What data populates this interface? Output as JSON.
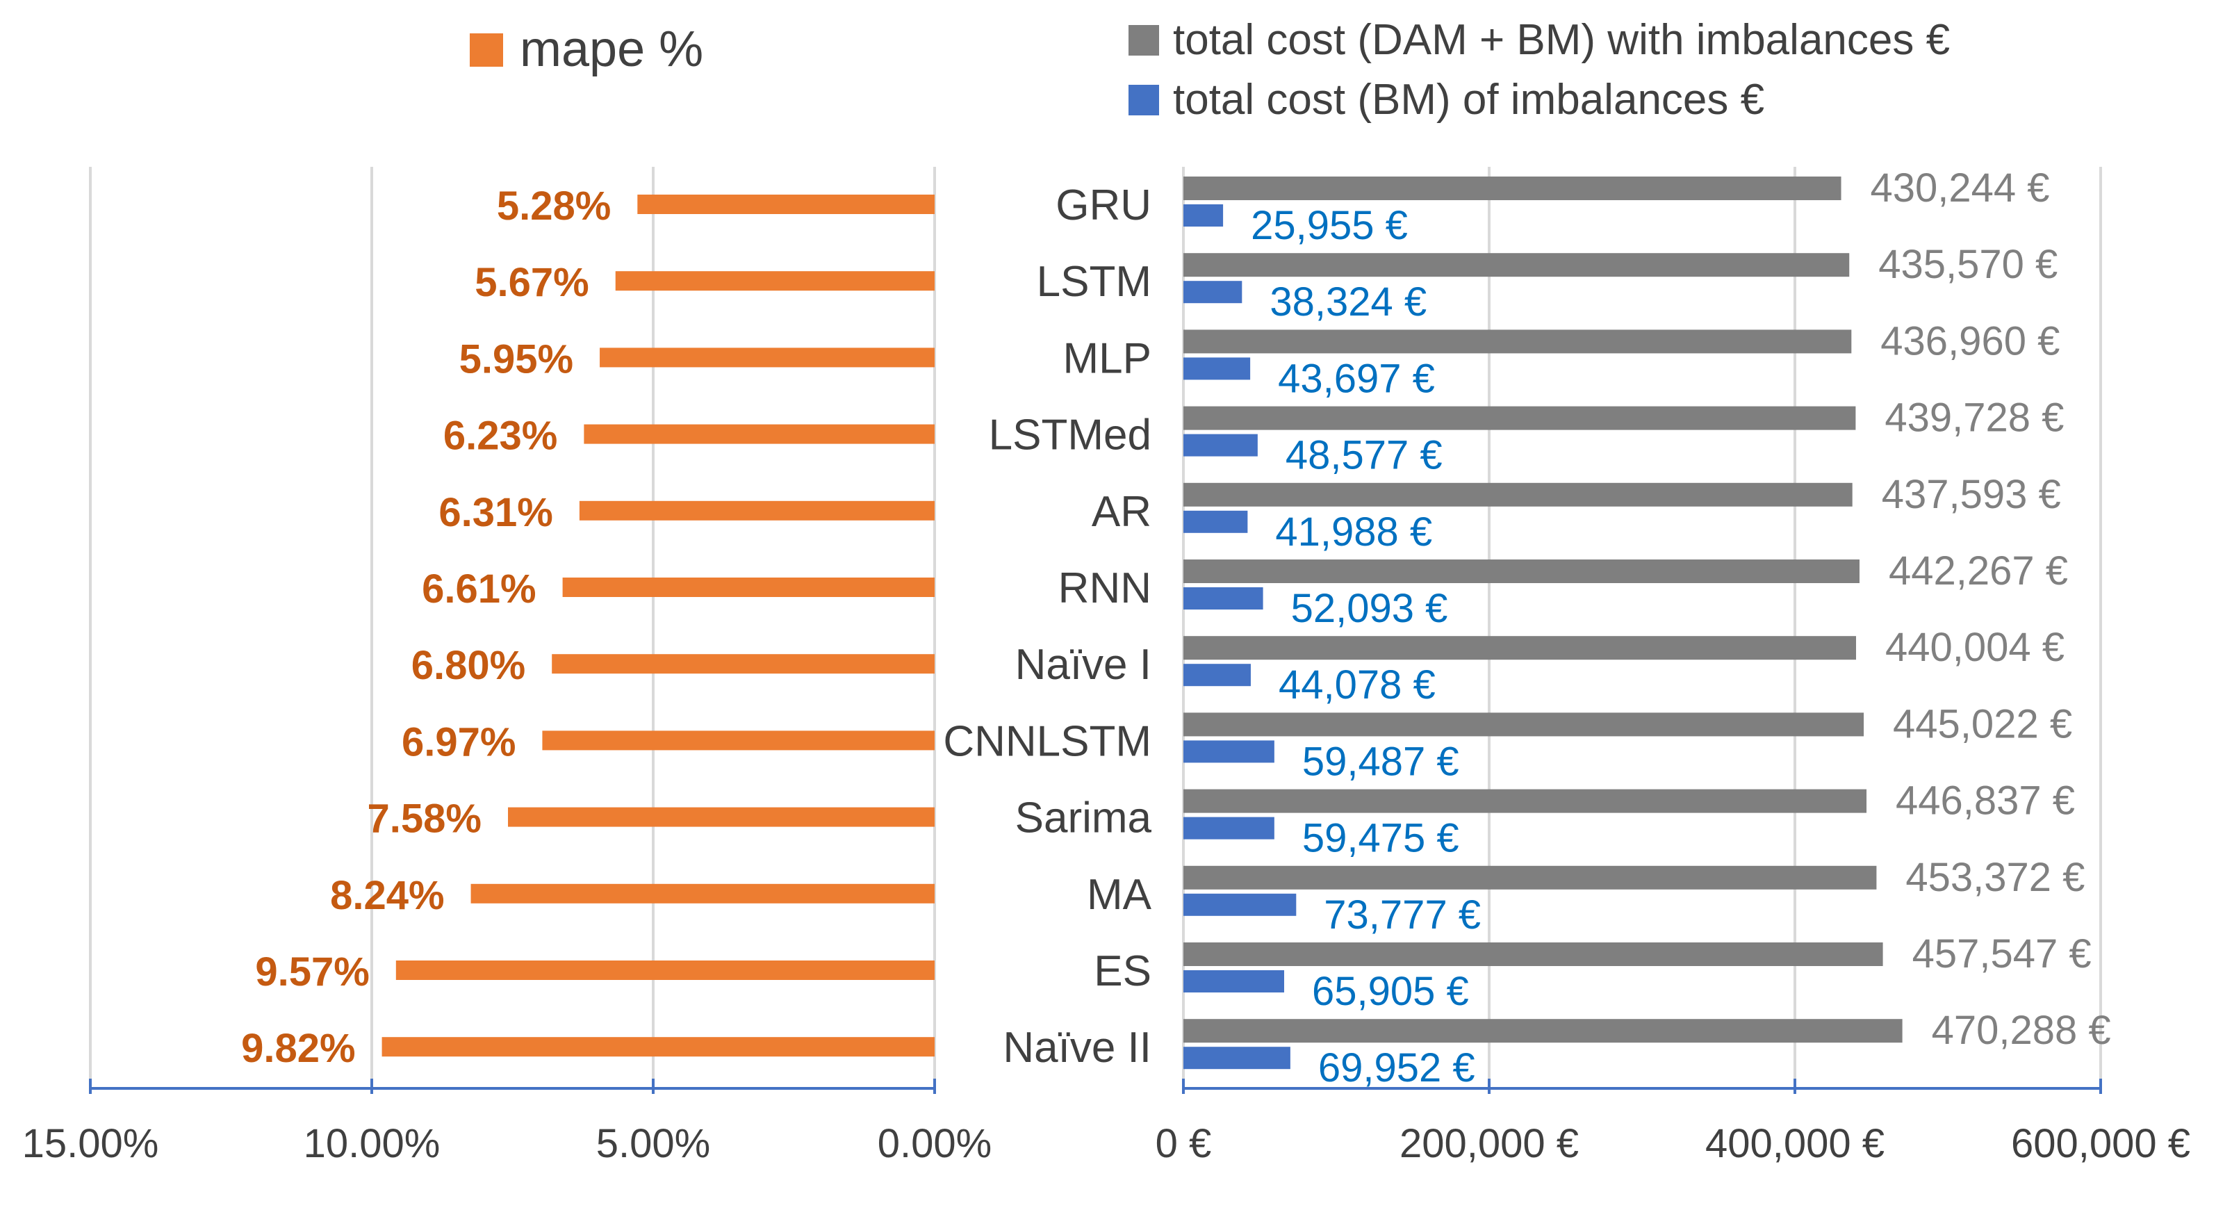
{
  "chart_data": [
    {
      "type": "bar",
      "orientation": "horizontal",
      "direction": "reversed",
      "title": "",
      "legend": [
        {
          "name": "mape %",
          "color": "#ED7D31"
        }
      ],
      "legend_position": "top-left",
      "categories": [
        "GRU",
        "LSTM",
        "MLP",
        "LSTMed",
        "AR",
        "RNN",
        "Naïve I",
        "CNNLSTM",
        "Sarima",
        "MA",
        "ES",
        "Naïve II"
      ],
      "series": [
        {
          "name": "mape %",
          "color": "#ED7D31",
          "values": [
            5.28,
            5.67,
            5.95,
            6.23,
            6.31,
            6.61,
            6.8,
            6.97,
            7.58,
            8.24,
            9.57,
            9.82
          ],
          "labels": [
            "5.28%",
            "5.67%",
            "5.95%",
            "6.23%",
            "6.31%",
            "6.61%",
            "6.80%",
            "6.97%",
            "7.58%",
            "8.24%",
            "9.57%",
            "9.82%"
          ],
          "label_color": "#C55A11"
        }
      ],
      "xlim": [
        0,
        15
      ],
      "xticks": [
        15,
        10,
        5,
        0
      ],
      "xtick_labels": [
        "15.00%",
        "10.00%",
        "5.00%",
        "0.00%"
      ],
      "grid": true,
      "xlabel": "",
      "ylabel": ""
    },
    {
      "type": "bar",
      "orientation": "horizontal",
      "title": "",
      "legend": [
        {
          "name": "total cost (DAM + BM) with imbalances €",
          "color": "#7F7F7F"
        },
        {
          "name": "total cost (BM) of imbalances €",
          "color": "#4472C4"
        }
      ],
      "legend_position": "top-right",
      "categories": [
        "GRU",
        "LSTM",
        "MLP",
        "LSTMed",
        "AR",
        "RNN",
        "Naïve I",
        "CNNLSTM",
        "Sarima",
        "MA",
        "ES",
        "Naïve II"
      ],
      "series": [
        {
          "name": "total cost (DAM + BM) with imbalances €",
          "color": "#7F7F7F",
          "values": [
            430244,
            435570,
            436960,
            439728,
            437593,
            442267,
            440004,
            445022,
            446837,
            453372,
            457547,
            470288
          ],
          "labels": [
            "430,244 €",
            "435,570 €",
            "436,960 €",
            "439,728 €",
            "437,593 €",
            "442,267 €",
            "440,004 €",
            "445,022 €",
            "446,837 €",
            "453,372 €",
            "457,547 €",
            "470,288 €"
          ],
          "label_color": "#808080"
        },
        {
          "name": "total cost (BM) of imbalances €",
          "color": "#4472C4",
          "values": [
            25955,
            38324,
            43697,
            48577,
            41988,
            52093,
            44078,
            59487,
            59475,
            73777,
            65905,
            69952
          ],
          "labels": [
            "25,955 €",
            "38,324 €",
            "43,697 €",
            "48,577 €",
            "41,988 €",
            "52,093 €",
            "44,078 €",
            "59,487 €",
            "59,475 €",
            "73,777 €",
            "65,905 €",
            "69,952 €"
          ],
          "label_color": "#0070C0"
        }
      ],
      "xlim": [
        0,
        600000
      ],
      "xticks": [
        0,
        200000,
        400000,
        600000
      ],
      "xtick_labels": [
        "0 €",
        "200,000 €",
        "400,000 €",
        "600,000 €"
      ],
      "grid": true,
      "xlabel": "",
      "ylabel": ""
    }
  ]
}
